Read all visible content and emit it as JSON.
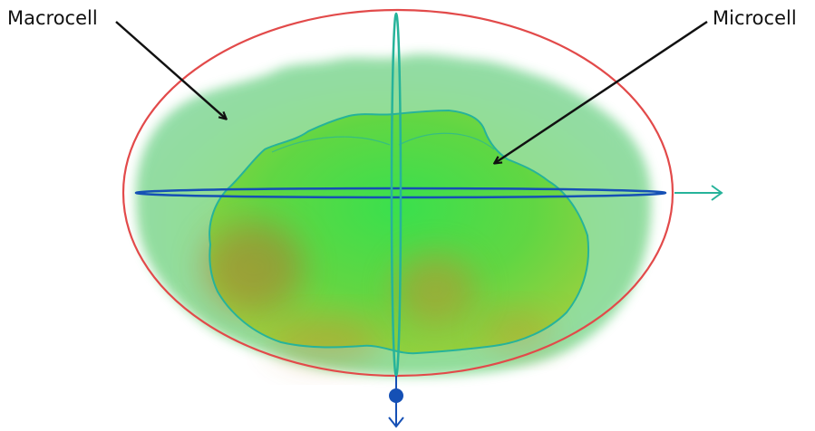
{
  "labels": {
    "macrocell": "Macrocell",
    "microcell": "Microcell"
  },
  "colors": {
    "macrocell_outline": "#e24a4a",
    "macrocell_fill": "#6fd49a",
    "microcell_outline": "#26b39a",
    "microcell_fill": "#3ec878",
    "hot_spot": "#c9892f",
    "horizontal_axis": "#1550b5",
    "vertical_axis": "#26b39a",
    "arrow": "#111111"
  },
  "icons": {
    "right_arrow": "arrow-right-icon",
    "down_arrow": "arrow-down-icon",
    "origin_marker": "dot-icon"
  }
}
